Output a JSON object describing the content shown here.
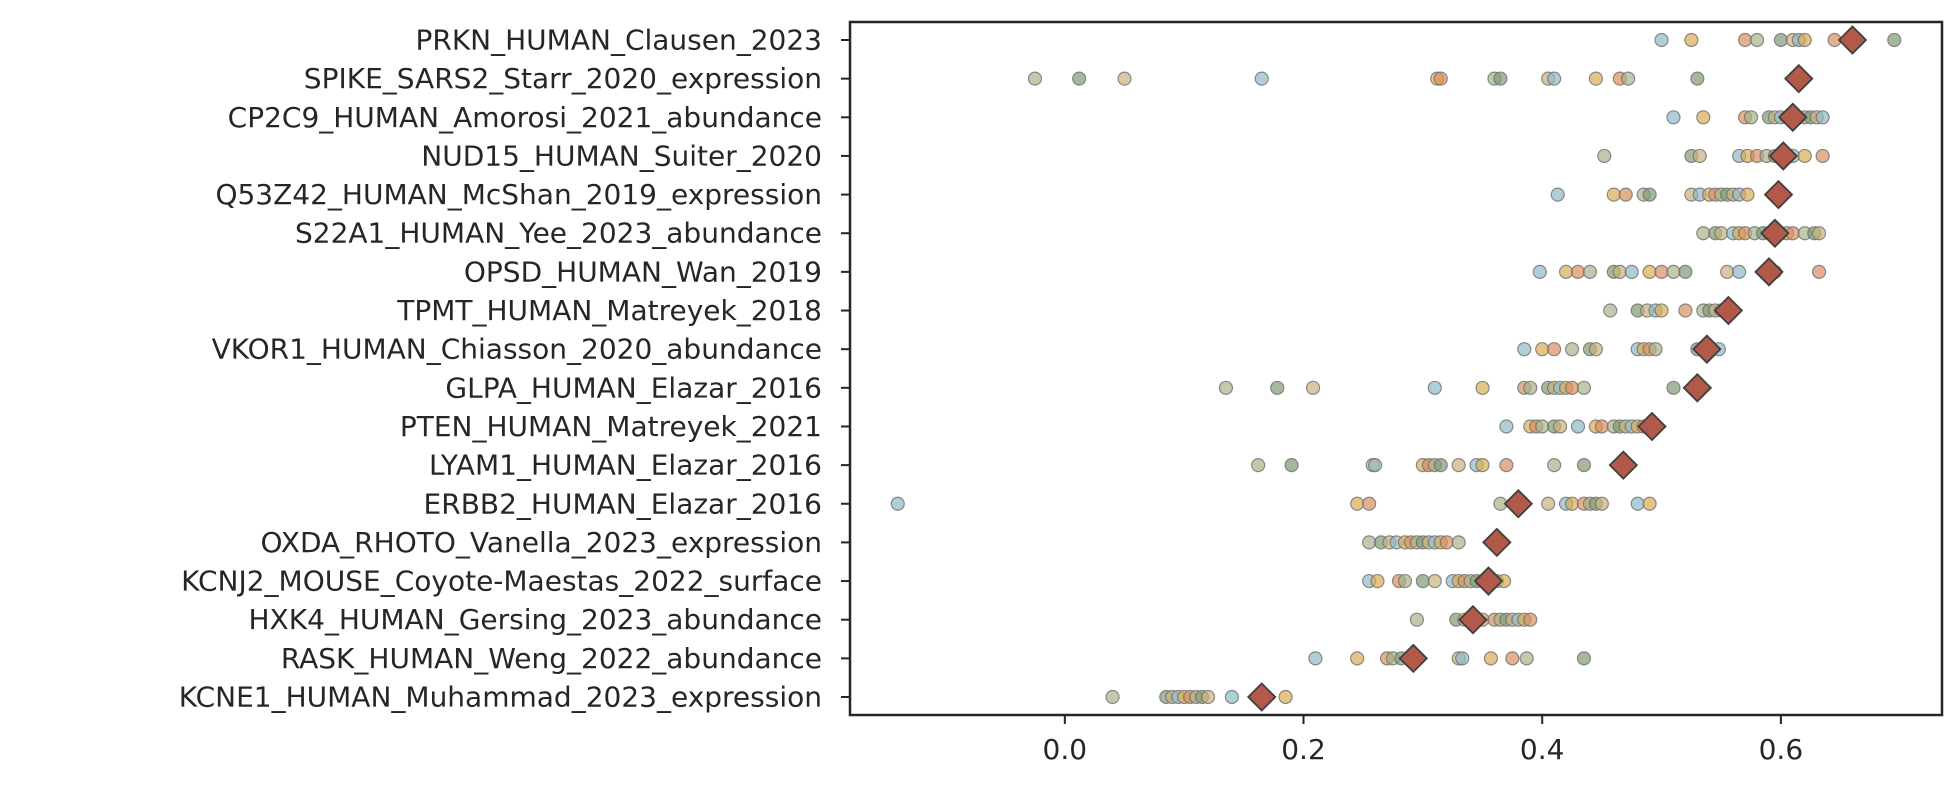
{
  "chart_data": {
    "type": "scatter",
    "title": "",
    "xlabel": "",
    "ylabel": "",
    "xlim": [
      -0.18,
      0.735
    ],
    "xticks": [
      0.0,
      0.2,
      0.4,
      0.6
    ],
    "xtick_labels": [
      "0.0",
      "0.2",
      "0.4",
      "0.6"
    ],
    "grid": false,
    "point_colors": [
      "#8fb9c6",
      "#d9ad52",
      "#d98e5f",
      "#a8b28a",
      "#7f9a73",
      "#c9b27a"
    ],
    "marker_color": "#b2594a",
    "rows": [
      {
        "label": "PRKN_HUMAN_Clausen_2023",
        "marker": 0.66,
        "points": [
          0.5,
          0.525,
          0.57,
          0.58,
          0.6,
          0.61,
          0.615,
          0.62,
          0.645,
          0.66,
          0.695
        ]
      },
      {
        "label": "SPIKE_SARS2_Starr_2020_expression",
        "marker": 0.615,
        "points": [
          -0.025,
          0.012,
          0.05,
          0.165,
          0.312,
          0.315,
          0.36,
          0.365,
          0.405,
          0.41,
          0.445,
          0.465,
          0.472,
          0.53
        ]
      },
      {
        "label": "CP2C9_HUMAN_Amorosi_2021_abundance",
        "marker": 0.61,
        "points": [
          0.51,
          0.535,
          0.57,
          0.575,
          0.59,
          0.595,
          0.6,
          0.605,
          0.615,
          0.62,
          0.625,
          0.63,
          0.635
        ]
      },
      {
        "label": "NUD15_HUMAN_Suiter_2020",
        "marker": 0.602,
        "points": [
          0.452,
          0.525,
          0.532,
          0.565,
          0.572,
          0.58,
          0.588,
          0.595,
          0.6,
          0.61,
          0.62,
          0.635
        ]
      },
      {
        "label": "Q53Z42_HUMAN_McShan_2019_expression",
        "marker": 0.598,
        "points": [
          0.413,
          0.46,
          0.47,
          0.485,
          0.49,
          0.525,
          0.532,
          0.54,
          0.545,
          0.55,
          0.555,
          0.56,
          0.565,
          0.572
        ]
      },
      {
        "label": "S22A1_HUMAN_Yee_2023_abundance",
        "marker": 0.595,
        "points": [
          0.535,
          0.545,
          0.55,
          0.56,
          0.565,
          0.57,
          0.578,
          0.585,
          0.59,
          0.6,
          0.605,
          0.61,
          0.62,
          0.628,
          0.632
        ]
      },
      {
        "label": "OPSD_HUMAN_Wan_2019",
        "marker": 0.59,
        "points": [
          0.398,
          0.42,
          0.43,
          0.44,
          0.46,
          0.465,
          0.475,
          0.49,
          0.5,
          0.51,
          0.52,
          0.555,
          0.565,
          0.595,
          0.632
        ]
      },
      {
        "label": "TPMT_HUMAN_Matreyek_2018",
        "marker": 0.556,
        "points": [
          0.457,
          0.48,
          0.488,
          0.495,
          0.5,
          0.52,
          0.535,
          0.54,
          0.545,
          0.55
        ]
      },
      {
        "label": "VKOR1_HUMAN_Chiasson_2020_abundance",
        "marker": 0.538,
        "points": [
          0.385,
          0.4,
          0.41,
          0.425,
          0.44,
          0.445,
          0.48,
          0.485,
          0.49,
          0.495,
          0.53,
          0.54,
          0.548
        ]
      },
      {
        "label": "GLPA_HUMAN_Elazar_2016",
        "marker": 0.53,
        "points": [
          0.135,
          0.178,
          0.208,
          0.31,
          0.35,
          0.385,
          0.39,
          0.405,
          0.41,
          0.415,
          0.42,
          0.425,
          0.435,
          0.51
        ]
      },
      {
        "label": "PTEN_HUMAN_Matreyek_2021",
        "marker": 0.492,
        "points": [
          0.37,
          0.39,
          0.395,
          0.4,
          0.41,
          0.415,
          0.43,
          0.445,
          0.45,
          0.46,
          0.465,
          0.47,
          0.475,
          0.48,
          0.485,
          0.49
        ]
      },
      {
        "label": "LYAM1_HUMAN_Elazar_2016",
        "marker": 0.468,
        "points": [
          0.162,
          0.19,
          0.258,
          0.26,
          0.3,
          0.305,
          0.31,
          0.315,
          0.33,
          0.345,
          0.35,
          0.37,
          0.41,
          0.435
        ]
      },
      {
        "label": "ERBB2_HUMAN_Elazar_2016",
        "marker": 0.38,
        "points": [
          -0.14,
          0.245,
          0.255,
          0.365,
          0.38,
          0.405,
          0.42,
          0.425,
          0.435,
          0.44,
          0.445,
          0.45,
          0.48,
          0.49
        ]
      },
      {
        "label": "OXDA_RHOTO_Vanella_2023_expression",
        "marker": 0.362,
        "points": [
          0.255,
          0.265,
          0.272,
          0.278,
          0.285,
          0.29,
          0.295,
          0.3,
          0.305,
          0.31,
          0.315,
          0.32,
          0.33
        ]
      },
      {
        "label": "KCNJ2_MOUSE_Coyote-Maestas_2022_surface",
        "marker": 0.355,
        "points": [
          0.255,
          0.262,
          0.28,
          0.285,
          0.3,
          0.31,
          0.325,
          0.33,
          0.335,
          0.34,
          0.345,
          0.35,
          0.362,
          0.368
        ]
      },
      {
        "label": "HXK4_HUMAN_Gersing_2023_abundance",
        "marker": 0.342,
        "points": [
          0.295,
          0.328,
          0.335,
          0.34,
          0.35,
          0.36,
          0.365,
          0.37,
          0.375,
          0.38,
          0.385,
          0.39
        ]
      },
      {
        "label": "RASK_HUMAN_Weng_2022_abundance",
        "marker": 0.292,
        "points": [
          0.21,
          0.245,
          0.27,
          0.275,
          0.282,
          0.33,
          0.333,
          0.357,
          0.375,
          0.387,
          0.435
        ]
      },
      {
        "label": "KCNE1_HUMAN_Muhammad_2023_expression",
        "marker": 0.165,
        "points": [
          0.04,
          0.085,
          0.09,
          0.095,
          0.1,
          0.105,
          0.11,
          0.115,
          0.12,
          0.14,
          0.185
        ]
      }
    ]
  }
}
